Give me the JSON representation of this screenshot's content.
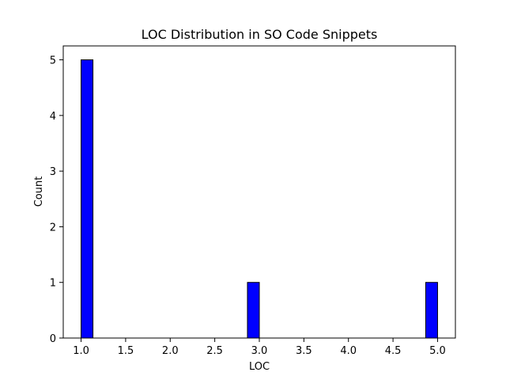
{
  "chart_data": {
    "type": "bar",
    "title": "LOC Distribution in SO Code Snippets",
    "xlabel": "LOC",
    "ylabel": "Count",
    "xlim": [
      0.8,
      5.2
    ],
    "ylim": [
      0,
      5.25
    ],
    "x_ticks": [
      "1.0",
      "1.5",
      "2.0",
      "2.5",
      "3.0",
      "3.5",
      "4.0",
      "4.5",
      "5.0"
    ],
    "y_ticks": [
      "0",
      "1",
      "2",
      "3",
      "4",
      "5"
    ],
    "bin_width": 0.1333,
    "bars": [
      {
        "x_start": 1.0,
        "value": 5
      },
      {
        "x_start": 2.8667,
        "value": 1
      },
      {
        "x_start": 4.8667,
        "value": 1
      }
    ],
    "bar_color": "#0000ff",
    "edge_color": "#000000",
    "grid": false
  }
}
